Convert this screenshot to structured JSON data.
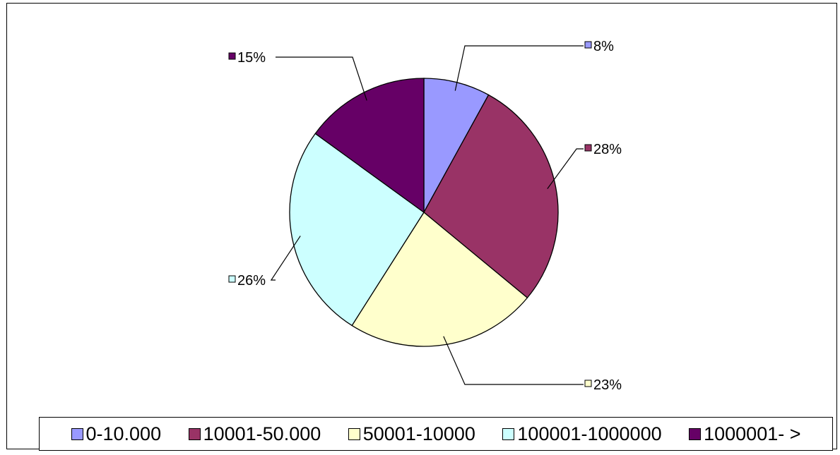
{
  "chart_data": {
    "type": "pie",
    "categories": [
      "0-10.000",
      "10001-50.000",
      "50001-10000",
      "100001-1000000",
      "1000001- >"
    ],
    "values": [
      8,
      28,
      23,
      26,
      15
    ],
    "data_labels": [
      "8%",
      "28%",
      "23%",
      "26%",
      "15%"
    ],
    "colors": [
      "#9999ff",
      "#993366",
      "#ffffcc",
      "#ccffff",
      "#660066"
    ],
    "legend_position": "bottom",
    "start_angle": "12 o'clock, clockwise"
  }
}
